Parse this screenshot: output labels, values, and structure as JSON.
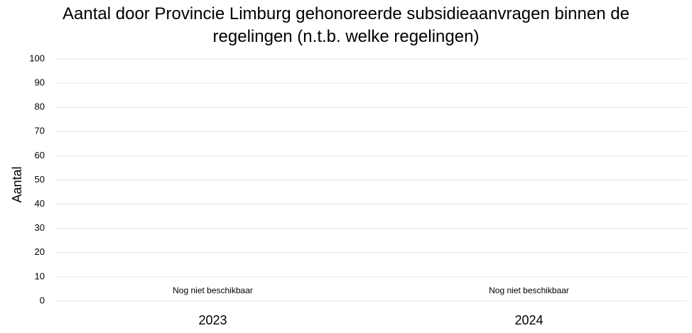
{
  "chart_data": {
    "type": "bar",
    "title": "Aantal door Provincie Limburg gehonoreerde subsidieaanvragen binnen de regelingen (n.t.b. welke regelingen)",
    "y_label": "Aantal",
    "categories": [
      "2023",
      "2024"
    ],
    "values": [
      null,
      null
    ],
    "value_labels": [
      "Nog niet beschikbaar",
      "Nog niet beschikbaar"
    ],
    "color": "#4472c4",
    "ylim": [
      0,
      100
    ],
    "yticks": [
      0,
      10,
      20,
      30,
      40,
      50,
      60,
      70,
      80,
      90,
      100
    ],
    "grid": true
  }
}
